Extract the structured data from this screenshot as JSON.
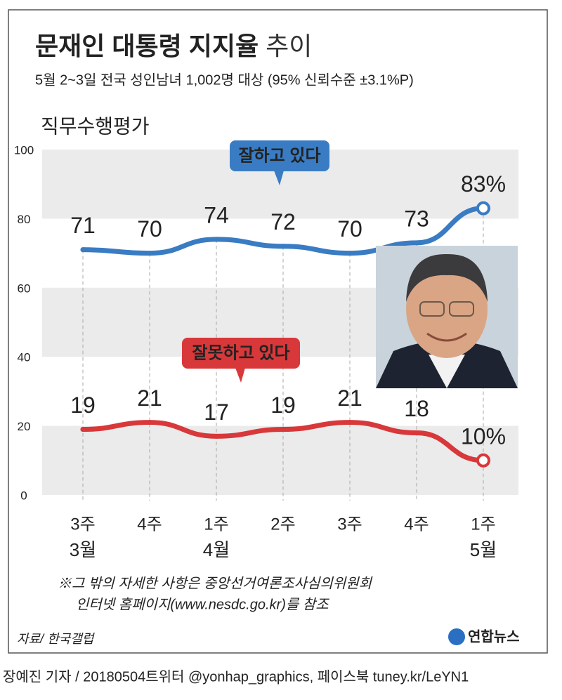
{
  "chart_data": {
    "type": "line",
    "title": "문재인 대통령 지지율",
    "title_suffix": "추이",
    "subtitle": "5월 2~3일 전국 성인남녀 1,002명 대상 (95% 신뢰수준 ±3.1%P)",
    "section_label": "직무수행평가",
    "categories": [
      "3주",
      "4주",
      "1주",
      "2주",
      "3주",
      "4주",
      "1주"
    ],
    "months": [
      "3월",
      null,
      "4월",
      null,
      null,
      null,
      "5월"
    ],
    "series": [
      {
        "name": "잘하고 있다",
        "color": "#3a7cc3",
        "values": [
          71,
          70,
          74,
          72,
          70,
          73,
          83
        ],
        "value_labels": [
          "71",
          "70",
          "74",
          "72",
          "70",
          "73",
          "83%"
        ]
      },
      {
        "name": "잘못하고 있다",
        "color": "#d8383a",
        "values": [
          19,
          21,
          17,
          19,
          21,
          18,
          10
        ],
        "value_labels": [
          "19",
          "21",
          "17",
          "19",
          "21",
          "18",
          "10%"
        ]
      }
    ],
    "ylim": [
      0,
      100
    ],
    "yticks": [
      0,
      20,
      40,
      60,
      80,
      100
    ],
    "grid": "bands",
    "notes": [
      "※그 밖의 자세한 사항은 중앙선거여론조사심의위원회",
      "인터넷 홈페이지(www.nesdc.go.kr)를 참조"
    ],
    "source": "자료/ 한국갤럽",
    "logo": "연합뉴스",
    "credit": "장예진 기자 / 20180504트위터 @yonhap_graphics, 페이스북 tuney.kr/LeYN1"
  }
}
